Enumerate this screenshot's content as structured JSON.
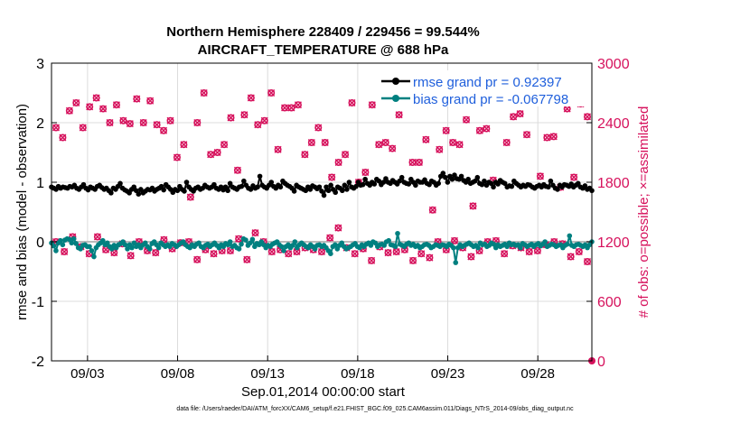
{
  "title_line1": "Northern Hemisphere 228409 / 229456 = 99.544%",
  "title_line2": "AIRCRAFT_TEMPERATURE @ 688 hPa",
  "xlabel": "Sep.01,2014 00:00:00 start",
  "footer": "data file: /Users/raeder/DAI/ATM_forcXX/CAM6_setup/f.e21.FHIST_BGC.f09_025.CAM6assim.011/Diags_NTrS_2014-09/obs_diag_output.nc",
  "chart_data": {
    "type": "line",
    "title": "Northern Hemisphere 228409 / 229456 = 99.544%  AIRCRAFT_TEMPERATURE @ 688 hPa",
    "xlabel": "Sep.01,2014 00:00:00 start",
    "ylabel_left": "rmse and bias (model - observation)",
    "ylabel_right": "# of obs: o=possible; ×=assimilated",
    "ylim_left": [
      -2,
      3
    ],
    "yticks_left": [
      "-2",
      "-1",
      "0",
      "1",
      "2",
      "3"
    ],
    "ylim_right": [
      0,
      3000
    ],
    "yticks_right": [
      "0",
      "600",
      "1200",
      "1800",
      "2400",
      "3000"
    ],
    "xlim_days": [
      1.0,
      31.0
    ],
    "xtick_days": [
      3,
      8,
      13,
      18,
      23,
      28
    ],
    "xtick_labels": [
      "09/03",
      "09/08",
      "09/13",
      "09/18",
      "09/23",
      "09/28"
    ],
    "legend": [
      {
        "label": "rmse grand pr = 0.92397",
        "color": "#000000"
      },
      {
        "label": "bias grand pr = -0.067798",
        "color": "#008080"
      }
    ],
    "colors": {
      "rmse": "#000000",
      "bias": "#008080",
      "counts": "#d6115c",
      "zero": "#bbbbbb"
    },
    "rmse": [
      0.92,
      0.9,
      0.88,
      0.93,
      0.9,
      0.92,
      0.91,
      0.9,
      0.93,
      0.92,
      0.95,
      0.9,
      0.88,
      0.92,
      0.96,
      0.9,
      0.87,
      0.92,
      0.9,
      0.88,
      0.93,
      0.95,
      0.91,
      0.88,
      0.9,
      0.86,
      0.82,
      0.9,
      0.88,
      0.93,
      0.98,
      0.9,
      0.87,
      0.85,
      0.82,
      0.88,
      0.92,
      0.86,
      0.8,
      0.88,
      0.82,
      0.85,
      0.88,
      0.87,
      0.9,
      0.85,
      0.88,
      0.9,
      0.93,
      0.87,
      0.96,
      0.92,
      0.88,
      0.83,
      0.88,
      0.86,
      0.93,
      0.88,
      0.85,
      1.0,
      0.92,
      0.88,
      0.85,
      0.9,
      0.92,
      0.88,
      0.9,
      0.95,
      0.92,
      0.9,
      0.92,
      0.96,
      0.9,
      0.88,
      0.92,
      0.87,
      0.92,
      0.86,
      0.98,
      0.92,
      0.9,
      0.88,
      0.92,
      0.93,
      1.02,
      0.95,
      0.9,
      0.88,
      0.94,
      0.9,
      0.92,
      1.1,
      0.95,
      0.92,
      0.9,
      0.95,
      1.0,
      0.93,
      0.9,
      0.95,
      0.92,
      1.02,
      0.98,
      0.95,
      0.93,
      0.9,
      0.85,
      0.95,
      0.92,
      0.9,
      0.88,
      0.86,
      0.92,
      0.88,
      0.94,
      0.92,
      0.89,
      0.92,
      0.85,
      0.78,
      0.92,
      0.86,
      0.95,
      0.88,
      0.83,
      0.92,
      0.9,
      0.86,
      0.95,
      0.88,
      1.0,
      0.92,
      0.9,
      0.93,
      1.0,
      0.95,
      0.96,
      1.05,
      0.98,
      0.95,
      1.0,
      0.97,
      1.05,
      1.02,
      0.96,
      1.0,
      1.06,
      1.0,
      0.98,
      1.03,
      1.0,
      0.97,
      1.02,
      1.08,
      1.0,
      0.98,
      0.97,
      1.05,
      1.0,
      0.95,
      1.02,
      1.0,
      1.0,
      1.04,
      0.98,
      0.96,
      1.02,
      1.0,
      0.95,
      0.98,
      1.1,
      1.15,
      1.08,
      1.0,
      1.1,
      1.05,
      1.12,
      1.06,
      1.05,
      1.1,
      1.03,
      1.0,
      1.05,
      0.98,
      1.0,
      1.02,
      1.08,
      0.98,
      0.96,
      1.02,
      0.95,
      1.0,
      0.98,
      0.92,
      1.0,
      0.97,
      1.03,
      1.0,
      0.98,
      0.92,
      0.94,
      0.93,
      1.02,
      0.98,
      0.95,
      0.92,
      0.95,
      0.93,
      0.96,
      0.95,
      0.92,
      0.9,
      0.93,
      0.95,
      0.92,
      0.96,
      0.93,
      0.92,
      1.02,
      0.95,
      0.9,
      0.88,
      0.95,
      0.92,
      0.96,
      0.95,
      0.93,
      0.97,
      0.92,
      0.95,
      0.98,
      0.92,
      0.9,
      0.94,
      0.88,
      0.9,
      0.86
    ],
    "bias": [
      -0.02,
      -0.07,
      -0.15,
      -0.02,
      0.02,
      -0.05,
      0.03,
      0.05,
      0.04,
      -0.02,
      0.05,
      -0.03,
      -0.1,
      -0.12,
      -0.06,
      -0.05,
      -0.08,
      -0.08,
      -0.15,
      -0.25,
      -0.1,
      -0.05,
      -0.02,
      0.02,
      -0.05,
      -0.02,
      -0.08,
      -0.12,
      -0.06,
      -0.1,
      -0.05,
      -0.03,
      0.0,
      -0.05,
      -0.12,
      -0.05,
      -0.1,
      -0.02,
      -0.08,
      -0.05,
      -0.1,
      -0.05,
      -0.02,
      -0.08,
      -0.12,
      -0.03,
      0.0,
      -0.05,
      -0.1,
      -0.02,
      -0.05,
      -0.08,
      -0.05,
      -0.08,
      -0.03,
      -0.05,
      -0.08,
      -0.05,
      -0.02,
      0.0,
      -0.05,
      -0.08,
      -0.1,
      -0.05,
      -0.08,
      -0.04,
      -0.02,
      -0.08,
      -0.1,
      -0.06,
      -0.04,
      -0.08,
      -0.05,
      -0.02,
      -0.06,
      -0.1,
      -0.05,
      -0.08,
      -0.03,
      -0.05,
      0.0,
      -0.08,
      -0.06,
      -0.1,
      -0.12,
      -0.04,
      0.05,
      0.03,
      -0.06,
      -0.02,
      0.04,
      -0.08,
      -0.03,
      -0.05,
      0.0,
      -0.05,
      -0.1,
      -0.06,
      -0.08,
      -0.04,
      -0.02,
      0.0,
      -0.05,
      -0.08,
      -0.15,
      -0.08,
      -0.05,
      -0.1,
      -0.06,
      0.0,
      -0.1,
      -0.05,
      -0.02,
      -0.05,
      -0.08,
      -0.1,
      -0.05,
      -0.08,
      -0.12,
      -0.06,
      -0.05,
      -0.08,
      -0.06,
      -0.1,
      -0.15,
      -0.2,
      -0.08,
      -0.05,
      -0.12,
      -0.06,
      -0.02,
      -0.08,
      -0.12,
      -0.1,
      -0.08,
      -0.05,
      -0.03,
      -0.08,
      -0.1,
      -0.05,
      -0.08,
      -0.04,
      -0.02,
      -0.06,
      0.0,
      -0.02,
      -0.08,
      -0.05,
      -0.04,
      -0.06,
      0.0,
      0.02,
      -0.05,
      -0.06,
      -0.08,
      0.14,
      -0.04,
      -0.06,
      -0.08,
      -0.04,
      -0.02,
      -0.06,
      -0.04,
      -0.08,
      -0.06,
      -0.1,
      -0.08,
      -0.05,
      -0.04,
      -0.06,
      -0.1,
      -0.08,
      -0.05,
      -0.06,
      -0.08,
      -0.05,
      -0.06,
      -0.08,
      -0.04,
      -0.06,
      -0.1,
      -0.35,
      -0.1,
      -0.05,
      -0.08,
      -0.06,
      -0.04,
      -0.02,
      -0.05,
      -0.08,
      -0.06,
      -0.1,
      -0.02,
      -0.05,
      -0.04,
      -0.08,
      -0.06,
      -0.02,
      -0.04,
      -0.1,
      -0.05,
      -0.08,
      -0.06,
      -0.04,
      -0.08,
      -0.02,
      -0.05,
      -0.04,
      -0.06,
      -0.05,
      -0.1,
      -0.03,
      -0.05,
      -0.08,
      -0.06,
      -0.04,
      -0.08,
      -0.05,
      -0.03,
      -0.07,
      -0.04,
      0.0,
      -0.08,
      -0.06,
      -0.04,
      -0.05,
      -0.08,
      -0.06,
      -0.05,
      -0.1,
      -0.06,
      -0.04,
      0.1,
      -0.06,
      -0.08,
      -0.05,
      -0.04,
      -0.06,
      -0.08,
      -0.05,
      -0.1,
      -0.05,
      0.0
    ],
    "possible": [
      2350,
      2250,
      2520,
      2600,
      2350,
      2560,
      2650,
      2540,
      2400,
      2580,
      2420,
      2390,
      2640,
      2400,
      2620,
      2380,
      2320,
      2420,
      2050,
      2180,
      1650,
      2400,
      2700,
      2080,
      2100,
      2180,
      2450,
      1920,
      2480,
      2650,
      2380,
      2420,
      2700,
      2130,
      2550,
      2550,
      2580,
      2080,
      2200,
      2350,
      2200,
      1850,
      2000,
      2080,
      2600,
      1800,
      1900,
      2580,
      2180,
      2200,
      2140,
      2480,
      2600,
      2000,
      2000,
      2230,
      1520,
      2130,
      2320,
      2200,
      2180,
      2430,
      1560,
      2320,
      2340,
      1820,
      2640,
      2200,
      2460,
      2490,
      2280,
      2730,
      1860,
      2250,
      2260,
      1750,
      2540,
      1850,
      2590,
      2460
    ],
    "assimilated": [
      2340,
      2240,
      2510,
      2590,
      2340,
      2550,
      2640,
      2530,
      2390,
      2570,
      2410,
      2380,
      2630,
      2390,
      2610,
      2370,
      2310,
      2410,
      2040,
      2170,
      1640,
      2390,
      2690,
      2070,
      2090,
      2170,
      2440,
      1910,
      2470,
      2640,
      2370,
      2410,
      2690,
      2120,
      2540,
      2540,
      2570,
      2070,
      2190,
      2340,
      2190,
      1840,
      1990,
      2070,
      2590,
      1790,
      1890,
      2570,
      2170,
      2190,
      2130,
      2470,
      2590,
      1990,
      1990,
      2220,
      1510,
      2120,
      2310,
      2190,
      2170,
      2420,
      1550,
      2310,
      2330,
      1810,
      2630,
      2190,
      2450,
      2480,
      2270,
      2720,
      1850,
      2240,
      2250,
      1740,
      2530,
      1840,
      2580,
      2450
    ],
    "possible_low": [
      1200,
      1100,
      1250,
      1150,
      1080,
      1250,
      1120,
      1090,
      1180,
      1060,
      1200,
      1110,
      1090,
      1220,
      1130,
      1190,
      1200,
      1020,
      1120,
      1080,
      1110,
      1110,
      1230,
      1020,
      1290,
      1200,
      1100,
      1120,
      1080,
      1100,
      1140,
      1120,
      1100,
      1240,
      1340,
      1140,
      1080,
      1130,
      1010,
      1150,
      1090,
      1100,
      1120,
      1010,
      1080,
      1040,
      1200,
      1120,
      1210,
      1140,
      1050,
      1110,
      1200,
      1210,
      1080,
      1160,
      1140,
      1100,
      1110,
      1170,
      1200,
      1180,
      1050,
      1100,
      1000
    ]
  }
}
